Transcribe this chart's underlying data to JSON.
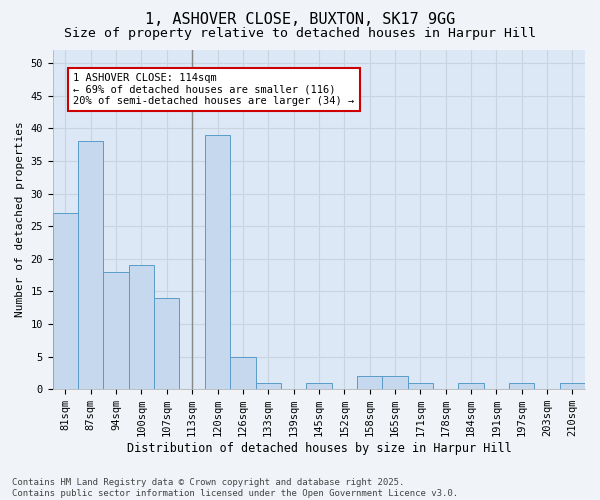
{
  "title1": "1, ASHOVER CLOSE, BUXTON, SK17 9GG",
  "title2": "Size of property relative to detached houses in Harpur Hill",
  "xlabel": "Distribution of detached houses by size in Harpur Hill",
  "ylabel": "Number of detached properties",
  "categories": [
    "81sqm",
    "87sqm",
    "94sqm",
    "100sqm",
    "107sqm",
    "113sqm",
    "120sqm",
    "126sqm",
    "133sqm",
    "139sqm",
    "145sqm",
    "152sqm",
    "158sqm",
    "165sqm",
    "171sqm",
    "178sqm",
    "184sqm",
    "191sqm",
    "197sqm",
    "203sqm",
    "210sqm"
  ],
  "values": [
    27,
    38,
    18,
    19,
    14,
    0,
    39,
    5,
    1,
    0,
    1,
    0,
    2,
    2,
    1,
    0,
    1,
    0,
    1,
    0,
    1
  ],
  "bar_color": "#c5d8ed",
  "bar_edge_color": "#5a9bc9",
  "highlight_bar_index": 5,
  "vline_color": "#888888",
  "annotation_text": "1 ASHOVER CLOSE: 114sqm\n← 69% of detached houses are smaller (116)\n20% of semi-detached houses are larger (34) →",
  "annotation_box_color": "#ffffff",
  "annotation_box_edge_color": "#cc0000",
  "ylim": [
    0,
    52
  ],
  "yticks": [
    0,
    5,
    10,
    15,
    20,
    25,
    30,
    35,
    40,
    45,
    50
  ],
  "grid_color": "#c8d4e0",
  "bg_color": "#dce8f5",
  "fig_bg_color": "#f0f4f8",
  "footer_line1": "Contains HM Land Registry data © Crown copyright and database right 2025.",
  "footer_line2": "Contains public sector information licensed under the Open Government Licence v3.0.",
  "title1_fontsize": 11,
  "title2_fontsize": 9.5,
  "xlabel_fontsize": 8.5,
  "ylabel_fontsize": 8,
  "tick_fontsize": 7.5,
  "annotation_fontsize": 7.5,
  "footer_fontsize": 6.5
}
